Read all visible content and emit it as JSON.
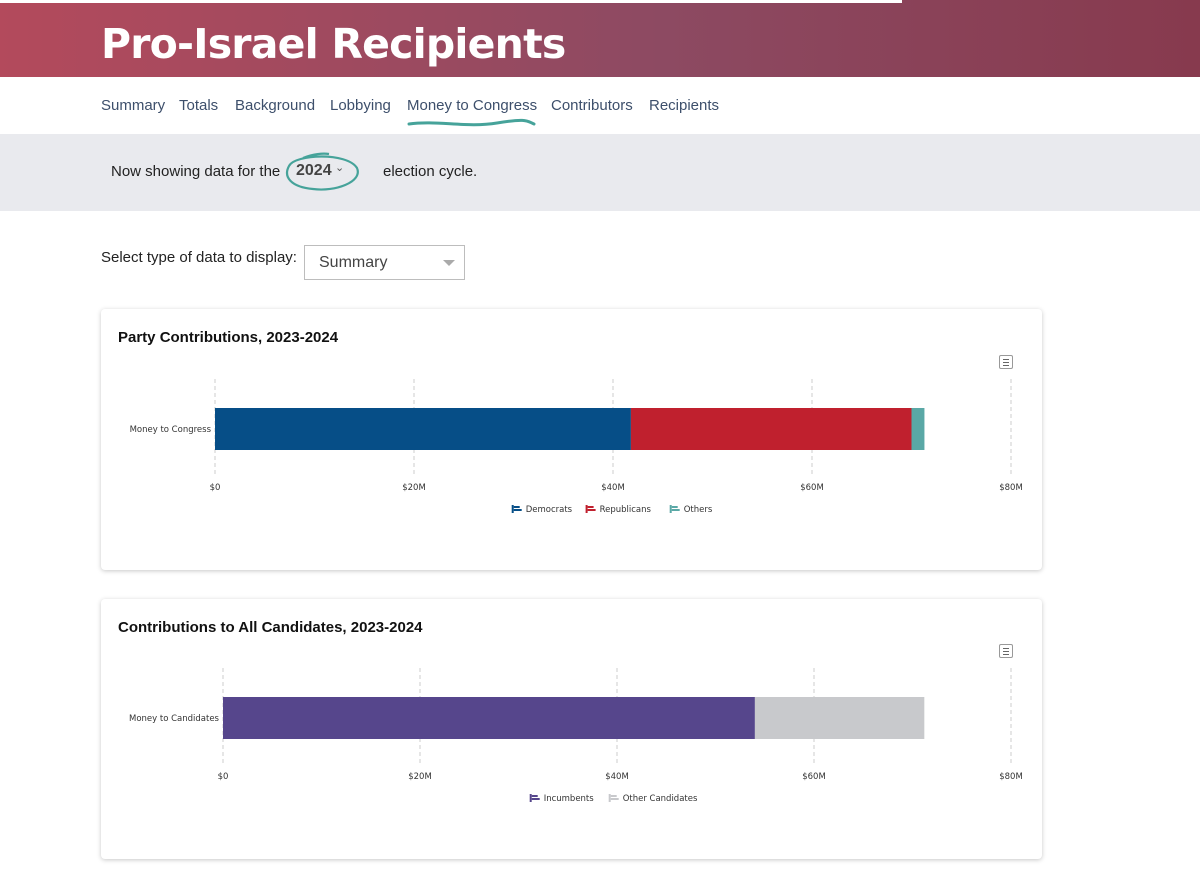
{
  "header": {
    "title": "Pro-Israel Recipients"
  },
  "nav": {
    "items": [
      "Summary",
      "Totals",
      "Background",
      "Lobbying",
      "Money to Congress",
      "Contributors",
      "Recipients"
    ],
    "active": "Money to Congress"
  },
  "cycle": {
    "prefix": "Now showing data for the",
    "year": "2024",
    "suffix": "election cycle."
  },
  "data_type": {
    "label": "Select type of data to display:",
    "selected": "Summary"
  },
  "colors": {
    "democrats": "#064e87",
    "republicans": "#c0202e",
    "others": "#5aa8a6",
    "incumbents": "#56468c",
    "other_candidates": "#c8c9cc",
    "header_start": "#b34a5c",
    "header_end": "#873a4e",
    "accent": "#46a39a"
  },
  "chart_data": [
    {
      "type": "bar",
      "orientation": "horizontal",
      "stacked": true,
      "title": "Party Contributions, 2023-2024",
      "categories": [
        "Money to Congress"
      ],
      "series": [
        {
          "name": "Democrats",
          "values": [
            41.8
          ],
          "color": "#064e87"
        },
        {
          "name": "Republicans",
          "values": [
            28.2
          ],
          "color": "#c0202e"
        },
        {
          "name": "Others",
          "values": [
            1.3
          ],
          "color": "#5aa8a6"
        }
      ],
      "xlim": [
        0,
        80
      ],
      "xticks": [
        0,
        20,
        40,
        60,
        80
      ],
      "xtick_labels": [
        "$0",
        "$20M",
        "$40M",
        "$60M",
        "$80M"
      ],
      "unit": "millions USD",
      "legend": "bottom-center"
    },
    {
      "type": "bar",
      "orientation": "horizontal",
      "stacked": true,
      "title": "Contributions to All Candidates, 2023-2024",
      "categories": [
        "Money to Candidates"
      ],
      "series": [
        {
          "name": "Incumbents",
          "values": [
            54.0
          ],
          "color": "#56468c"
        },
        {
          "name": "Other Candidates",
          "values": [
            17.2
          ],
          "color": "#c8c9cc"
        }
      ],
      "xlim": [
        0,
        80
      ],
      "xticks": [
        0,
        20,
        40,
        60,
        80
      ],
      "xtick_labels": [
        "$0",
        "$20M",
        "$40M",
        "$60M",
        "$80M"
      ],
      "unit": "millions USD",
      "legend": "bottom-center"
    }
  ]
}
